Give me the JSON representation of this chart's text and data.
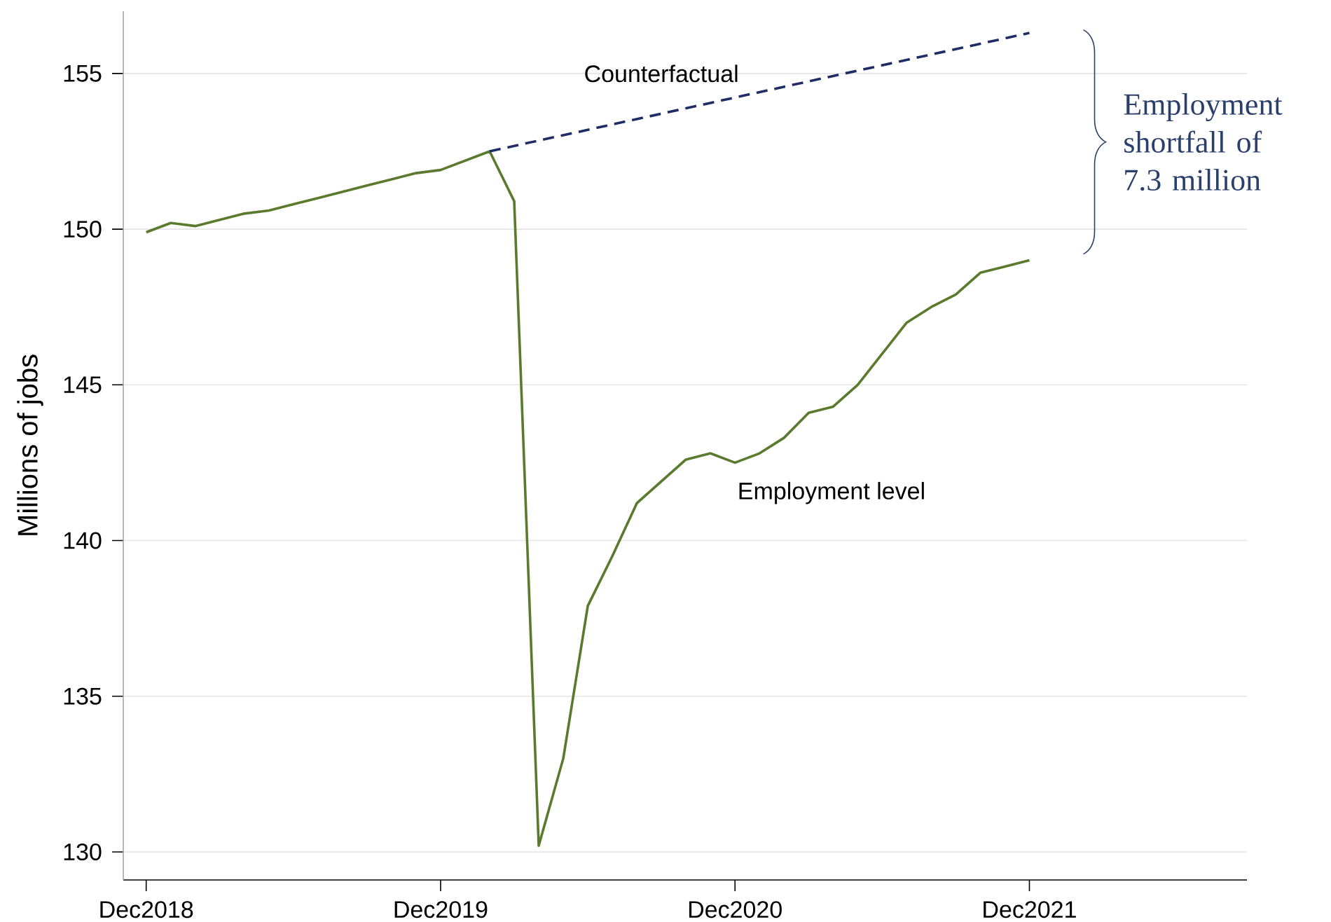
{
  "chart_data": {
    "type": "line",
    "ylabel": "Millions of jobs",
    "xlim": [
      "2018-11-03",
      "2022-08-27"
    ],
    "xticks": [
      {
        "value": "2018-12",
        "label": "Dec2018"
      },
      {
        "value": "2019-12",
        "label": "Dec2019"
      },
      {
        "value": "2020-12",
        "label": "Dec2020"
      },
      {
        "value": "2021-12",
        "label": "Dec2021"
      }
    ],
    "ylim": [
      129.1,
      157.0
    ],
    "yticks": [
      130,
      135,
      140,
      145,
      150,
      155
    ],
    "grid": "y",
    "annotations": [
      "Employment shortfall of 7.3 million"
    ],
    "series": [
      {
        "name": "Employment level",
        "color": "#5a7a2e",
        "line_style": "solid",
        "x": [
          "2018-12",
          "2019-01",
          "2019-02",
          "2019-03",
          "2019-04",
          "2019-05",
          "2019-06",
          "2019-07",
          "2019-08",
          "2019-09",
          "2019-10",
          "2019-11",
          "2019-12",
          "2020-01",
          "2020-02",
          "2020-03",
          "2020-04",
          "2020-05",
          "2020-06",
          "2020-07",
          "2020-08",
          "2020-09",
          "2020-10",
          "2020-11",
          "2020-12",
          "2021-01",
          "2021-02",
          "2021-03",
          "2021-04",
          "2021-05",
          "2021-06",
          "2021-07",
          "2021-08",
          "2021-09",
          "2021-10",
          "2021-11",
          "2021-12"
        ],
        "values": [
          149.9,
          150.2,
          150.1,
          150.3,
          150.5,
          150.6,
          150.8,
          151.0,
          151.2,
          151.4,
          151.6,
          151.8,
          151.9,
          152.2,
          152.5,
          150.9,
          130.2,
          133.0,
          137.9,
          139.5,
          141.2,
          141.9,
          142.6,
          142.8,
          142.5,
          142.8,
          143.3,
          144.1,
          144.3,
          145.0,
          146.0,
          147.0,
          147.5,
          147.9,
          148.6,
          148.8,
          149.0
        ]
      },
      {
        "name": "Counterfactual",
        "color": "#1f2d66",
        "line_style": "dashed",
        "x": [
          "2020-02",
          "2021-12"
        ],
        "values": [
          152.5,
          156.3
        ]
      }
    ]
  }
}
